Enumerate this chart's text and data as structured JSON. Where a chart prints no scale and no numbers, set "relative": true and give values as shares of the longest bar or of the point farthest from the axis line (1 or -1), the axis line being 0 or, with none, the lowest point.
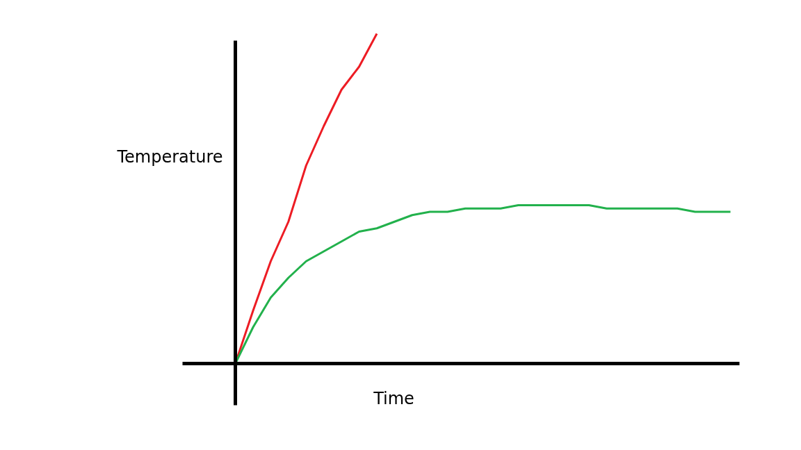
{
  "chart_data": {
    "type": "line",
    "relative": true,
    "xlabel": "Time",
    "ylabel": "Temperature",
    "grid": false,
    "marker": "none",
    "line_style": "solid",
    "categories": [
      null,
      null,
      null,
      null,
      null,
      null,
      null,
      null,
      null,
      null,
      null,
      null,
      null,
      null,
      null,
      null,
      null,
      null,
      null,
      null,
      null,
      null,
      null,
      null,
      null,
      null,
      null,
      null,
      null
    ],
    "series": [
      {
        "color": "#ed1c24",
        "values": [
          0,
          0.16,
          0.31,
          0.43,
          0.6,
          0.72,
          0.83,
          0.9,
          1.0,
          null,
          null,
          null,
          null,
          null,
          null,
          null,
          null,
          null,
          null,
          null,
          null,
          null,
          null,
          null,
          null,
          null,
          null,
          null,
          null
        ]
      },
      {
        "color": "#22b14c",
        "values": [
          0,
          0.11,
          0.2,
          0.26,
          0.31,
          0.34,
          0.37,
          0.4,
          0.41,
          0.43,
          0.45,
          0.46,
          0.46,
          0.47,
          0.47,
          0.47,
          0.48,
          0.48,
          0.48,
          0.48,
          0.48,
          0.47,
          0.47,
          0.47,
          0.47,
          0.47,
          0.46,
          0.46,
          0.46
        ]
      }
    ]
  }
}
